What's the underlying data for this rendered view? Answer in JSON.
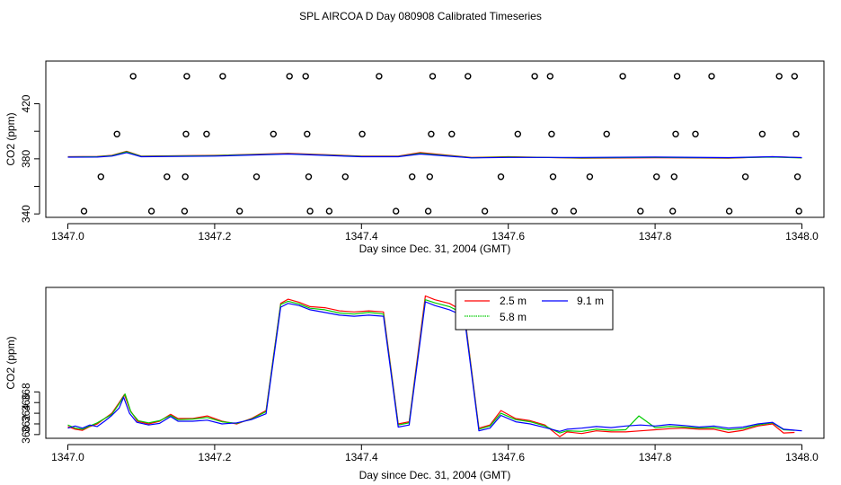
{
  "title": "SPL AIRCOA D  Day 080908  Calibrated Timeseries",
  "chart_data": [
    {
      "type": "scatter",
      "panel": "top",
      "xlabel": "Day since Dec. 31, 2004 (GMT)",
      "ylabel": "CO2 (ppm)",
      "xlim": [
        1346.97,
        1348.03
      ],
      "ylim": [
        337.5,
        451
      ],
      "xticks": [
        1347.0,
        1347.2,
        1347.4,
        1347.6,
        1347.8,
        1348.0
      ],
      "xtick_labels": [
        "1347.0",
        "1347.2",
        "1347.4",
        "1347.6",
        "1347.8",
        "1348.0"
      ],
      "yticks": [
        340,
        360,
        380,
        400,
        420
      ],
      "ytick_labels": [
        "340",
        "380",
        "420"
      ],
      "calibration_points": [
        {
          "x": 1347.022,
          "y": 342
        },
        {
          "x": 1347.045,
          "y": 367
        },
        {
          "x": 1347.067,
          "y": 398
        },
        {
          "x": 1347.089,
          "y": 440
        },
        {
          "x": 1347.114,
          "y": 342
        },
        {
          "x": 1347.135,
          "y": 367
        },
        {
          "x": 1347.159,
          "y": 342
        },
        {
          "x": 1347.16,
          "y": 367
        },
        {
          "x": 1347.161,
          "y": 398
        },
        {
          "x": 1347.162,
          "y": 440
        },
        {
          "x": 1347.189,
          "y": 398
        },
        {
          "x": 1347.211,
          "y": 440
        },
        {
          "x": 1347.234,
          "y": 342
        },
        {
          "x": 1347.257,
          "y": 367
        },
        {
          "x": 1347.28,
          "y": 398
        },
        {
          "x": 1347.302,
          "y": 440
        },
        {
          "x": 1347.324,
          "y": 440
        },
        {
          "x": 1347.326,
          "y": 398
        },
        {
          "x": 1347.328,
          "y": 367
        },
        {
          "x": 1347.33,
          "y": 342
        },
        {
          "x": 1347.356,
          "y": 342
        },
        {
          "x": 1347.378,
          "y": 367
        },
        {
          "x": 1347.401,
          "y": 398
        },
        {
          "x": 1347.424,
          "y": 440
        },
        {
          "x": 1347.447,
          "y": 342
        },
        {
          "x": 1347.469,
          "y": 367
        },
        {
          "x": 1347.491,
          "y": 342
        },
        {
          "x": 1347.493,
          "y": 367
        },
        {
          "x": 1347.495,
          "y": 398
        },
        {
          "x": 1347.497,
          "y": 440
        },
        {
          "x": 1347.523,
          "y": 398
        },
        {
          "x": 1347.545,
          "y": 440
        },
        {
          "x": 1347.568,
          "y": 342
        },
        {
          "x": 1347.59,
          "y": 367
        },
        {
          "x": 1347.613,
          "y": 398
        },
        {
          "x": 1347.636,
          "y": 440
        },
        {
          "x": 1347.657,
          "y": 440
        },
        {
          "x": 1347.659,
          "y": 398
        },
        {
          "x": 1347.661,
          "y": 367
        },
        {
          "x": 1347.663,
          "y": 342
        },
        {
          "x": 1347.689,
          "y": 342
        },
        {
          "x": 1347.711,
          "y": 367
        },
        {
          "x": 1347.734,
          "y": 398
        },
        {
          "x": 1347.756,
          "y": 440
        },
        {
          "x": 1347.78,
          "y": 342
        },
        {
          "x": 1347.802,
          "y": 367
        },
        {
          "x": 1347.824,
          "y": 342
        },
        {
          "x": 1347.826,
          "y": 367
        },
        {
          "x": 1347.828,
          "y": 398
        },
        {
          "x": 1347.83,
          "y": 440
        },
        {
          "x": 1347.855,
          "y": 398
        },
        {
          "x": 1347.877,
          "y": 440
        },
        {
          "x": 1347.901,
          "y": 342
        },
        {
          "x": 1347.923,
          "y": 367
        },
        {
          "x": 1347.946,
          "y": 398
        },
        {
          "x": 1347.969,
          "y": 440
        },
        {
          "x": 1347.99,
          "y": 440
        },
        {
          "x": 1347.992,
          "y": 398
        },
        {
          "x": 1347.994,
          "y": 367
        },
        {
          "x": 1347.996,
          "y": 342
        }
      ],
      "series": [
        {
          "name": "2.5 m",
          "color": "#ff0000",
          "x": [
            1347.0,
            1347.04,
            1347.06,
            1347.08,
            1347.1,
            1347.2,
            1347.3,
            1347.4,
            1347.45,
            1347.48,
            1347.55,
            1347.6,
            1347.7,
            1347.8,
            1347.9,
            1347.96,
            1348.0
          ],
          "y": [
            381.5,
            381.7,
            382.5,
            385.5,
            382.0,
            382.5,
            384.0,
            382.0,
            382.0,
            384.5,
            381.0,
            381.5,
            380.5,
            380.8,
            380.5,
            381.5,
            380.8
          ]
        },
        {
          "name": "5.8 m",
          "color": "#00cc00",
          "x": [
            1347.0,
            1347.04,
            1347.06,
            1347.08,
            1347.1,
            1347.2,
            1347.3,
            1347.4,
            1347.45,
            1347.48,
            1347.55,
            1347.6,
            1347.7,
            1347.8,
            1347.9,
            1347.96,
            1348.0
          ],
          "y": [
            381.3,
            381.5,
            382.3,
            385.2,
            381.8,
            382.3,
            383.7,
            381.8,
            381.7,
            384.0,
            380.8,
            381.3,
            380.7,
            381.0,
            380.7,
            381.3,
            380.7
          ]
        },
        {
          "name": "9.1 m",
          "color": "#0000ff",
          "x": [
            1347.0,
            1347.04,
            1347.06,
            1347.08,
            1347.1,
            1347.2,
            1347.3,
            1347.4,
            1347.45,
            1347.48,
            1347.55,
            1347.6,
            1347.7,
            1347.8,
            1347.9,
            1347.96,
            1348.0
          ],
          "y": [
            381.2,
            381.3,
            382.0,
            384.5,
            381.5,
            382.0,
            383.5,
            381.5,
            381.5,
            383.5,
            380.7,
            381.0,
            381.0,
            381.3,
            380.9,
            381.5,
            380.9
          ]
        }
      ]
    },
    {
      "type": "line",
      "panel": "bottom",
      "xlabel": "Day since Dec. 31, 2004 (GMT)",
      "ylabel": "CO2 (ppm)",
      "xlim": [
        1346.97,
        1348.03
      ],
      "ylim": [
        359.3,
        387.6
      ],
      "xticks": [
        1347.0,
        1347.2,
        1347.4,
        1347.6,
        1347.8,
        1348.0
      ],
      "xtick_labels": [
        "1347.0",
        "1347.2",
        "1347.4",
        "1347.6",
        "1347.8",
        "1348.0"
      ],
      "yticks": [
        360,
        362,
        364,
        366,
        368
      ],
      "ytick_labels": [
        "360",
        "362",
        "364",
        "366",
        "368"
      ],
      "legend": {
        "position": "top-center",
        "entries": [
          "2.5 m",
          "5.8 m",
          "9.1 m"
        ]
      },
      "series": [
        {
          "name": "2.5 m",
          "color": "#ff0000",
          "x": [
            1347.0,
            1347.01,
            1347.02,
            1347.03,
            1347.04,
            1347.05,
            1347.06,
            1347.07,
            1347.077,
            1347.085,
            1347.095,
            1347.11,
            1347.125,
            1347.14,
            1347.15,
            1347.17,
            1347.19,
            1347.21,
            1347.23,
            1347.25,
            1347.27,
            1347.29,
            1347.3,
            1347.315,
            1347.33,
            1347.35,
            1347.37,
            1347.39,
            1347.41,
            1347.43,
            1347.45,
            1347.465,
            1347.487,
            1347.5,
            1347.52,
            1347.54,
            1347.56,
            1347.575,
            1347.59,
            1347.61,
            1347.63,
            1347.65,
            1347.67,
            1347.68,
            1347.7,
            1347.72,
            1347.74,
            1347.76,
            1347.78,
            1347.8,
            1347.82,
            1347.84,
            1347.86,
            1347.88,
            1347.9,
            1347.92,
            1347.94,
            1347.96,
            1347.975,
            1347.99
          ],
          "y": [
            361.5,
            361.0,
            360.8,
            361.5,
            362.0,
            363.0,
            364.0,
            366.0,
            367.5,
            364.5,
            362.5,
            362.0,
            362.5,
            363.8,
            363.0,
            363.0,
            363.5,
            362.5,
            362.0,
            363.0,
            364.5,
            384.6,
            385.4,
            384.8,
            384.0,
            383.8,
            383.2,
            383.0,
            383.2,
            383.0,
            362.0,
            362.4,
            386.0,
            385.3,
            384.6,
            383.0,
            361.2,
            361.8,
            364.5,
            363.0,
            362.6,
            361.8,
            359.6,
            360.5,
            360.2,
            360.7,
            360.5,
            360.5,
            360.7,
            360.9,
            361.1,
            361.2,
            361.0,
            361.0,
            360.4,
            360.8,
            361.6,
            362.0,
            360.3,
            360.4
          ]
        },
        {
          "name": "5.8 m",
          "color": "#00cc00",
          "x": [
            1347.0,
            1347.01,
            1347.02,
            1347.03,
            1347.04,
            1347.05,
            1347.06,
            1347.07,
            1347.078,
            1347.086,
            1347.096,
            1347.11,
            1347.125,
            1347.14,
            1347.15,
            1347.17,
            1347.19,
            1347.21,
            1347.23,
            1347.25,
            1347.27,
            1347.29,
            1347.3,
            1347.315,
            1347.33,
            1347.35,
            1347.37,
            1347.39,
            1347.41,
            1347.43,
            1347.45,
            1347.465,
            1347.487,
            1347.5,
            1347.52,
            1347.54,
            1347.56,
            1347.575,
            1347.59,
            1347.61,
            1347.63,
            1347.65,
            1347.67,
            1347.68,
            1347.7,
            1347.72,
            1347.74,
            1347.76,
            1347.778,
            1347.8,
            1347.82,
            1347.84,
            1347.86,
            1347.88,
            1347.9,
            1347.92,
            1347.94,
            1347.96,
            1347.975,
            1347.99
          ],
          "y": [
            361.8,
            361.2,
            361.0,
            361.6,
            362.2,
            363.0,
            363.8,
            365.8,
            367.6,
            364.2,
            362.6,
            362.2,
            362.6,
            363.6,
            362.8,
            362.9,
            363.2,
            362.4,
            362.1,
            362.9,
            364.3,
            384.4,
            385.0,
            384.5,
            383.7,
            383.4,
            382.8,
            382.6,
            382.9,
            382.6,
            361.8,
            362.2,
            385.3,
            384.7,
            384.0,
            382.6,
            361.0,
            361.6,
            364.0,
            362.8,
            362.4,
            361.6,
            360.3,
            360.7,
            360.6,
            361.0,
            360.8,
            360.9,
            363.5,
            361.3,
            361.5,
            361.4,
            361.2,
            361.3,
            360.9,
            361.1,
            361.8,
            362.2,
            360.9,
            360.8
          ]
        },
        {
          "name": "9.1 m",
          "color": "#0000ff",
          "x": [
            1347.0,
            1347.01,
            1347.02,
            1347.03,
            1347.04,
            1347.05,
            1347.06,
            1347.07,
            1347.076,
            1347.084,
            1347.094,
            1347.11,
            1347.125,
            1347.14,
            1347.15,
            1347.17,
            1347.19,
            1347.21,
            1347.23,
            1347.25,
            1347.27,
            1347.29,
            1347.3,
            1347.315,
            1347.33,
            1347.35,
            1347.37,
            1347.39,
            1347.41,
            1347.43,
            1347.45,
            1347.465,
            1347.487,
            1347.5,
            1347.52,
            1347.54,
            1347.56,
            1347.575,
            1347.59,
            1347.61,
            1347.63,
            1347.65,
            1347.67,
            1347.68,
            1347.7,
            1347.72,
            1347.74,
            1347.76,
            1347.78,
            1347.8,
            1347.82,
            1347.84,
            1347.86,
            1347.88,
            1347.9,
            1347.92,
            1347.94,
            1347.96,
            1347.975,
            1348.0
          ],
          "y": [
            361.2,
            361.6,
            361.2,
            361.8,
            361.5,
            362.5,
            363.6,
            365.0,
            367.0,
            364.0,
            362.3,
            361.8,
            362.1,
            363.4,
            362.5,
            362.5,
            362.7,
            362.0,
            362.2,
            362.8,
            363.9,
            383.9,
            384.6,
            384.2,
            383.4,
            382.9,
            382.4,
            382.2,
            382.4,
            382.2,
            361.4,
            361.8,
            384.9,
            384.2,
            383.4,
            382.2,
            360.7,
            361.2,
            363.6,
            362.4,
            362.0,
            361.3,
            360.6,
            361.0,
            361.2,
            361.5,
            361.3,
            361.6,
            361.8,
            361.6,
            361.9,
            361.7,
            361.4,
            361.6,
            361.2,
            361.4,
            362.0,
            362.3,
            361.0,
            360.7
          ]
        }
      ]
    }
  ]
}
